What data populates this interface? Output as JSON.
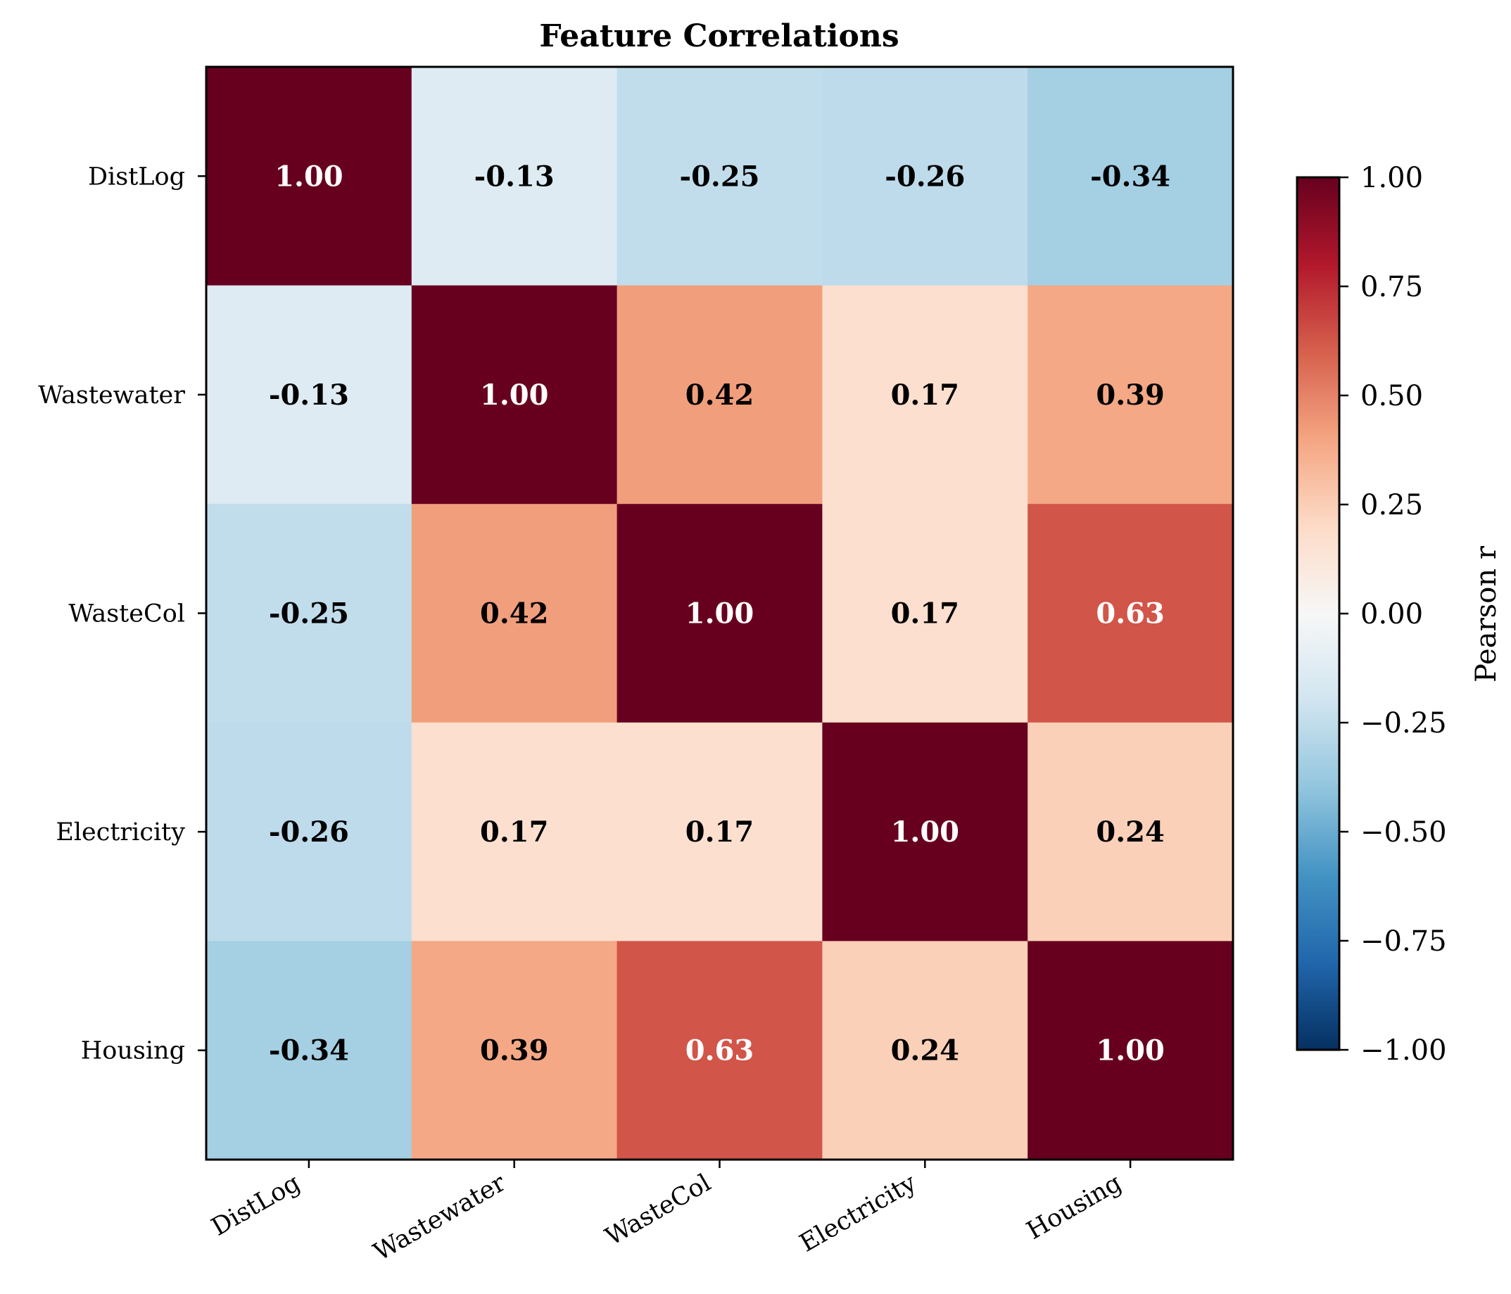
{
  "chart_data": {
    "type": "heatmap",
    "title": "Feature Correlations",
    "row_labels": [
      "DistLog",
      "Wastewater",
      "WasteCol",
      "Electricity",
      "Housing"
    ],
    "col_labels": [
      "DistLog",
      "Wastewater",
      "WasteCol",
      "Electricity",
      "Housing"
    ],
    "values": [
      [
        1.0,
        -0.13,
        -0.25,
        -0.26,
        -0.34
      ],
      [
        -0.13,
        1.0,
        0.42,
        0.17,
        0.39
      ],
      [
        -0.25,
        0.42,
        1.0,
        0.17,
        0.63
      ],
      [
        -0.26,
        0.17,
        0.17,
        1.0,
        0.24
      ],
      [
        -0.34,
        0.39,
        0.63,
        0.24,
        1.0
      ]
    ],
    "colormap": "RdBu_r",
    "vmin": -1.0,
    "vmax": 1.0,
    "colorbar": {
      "label": "Pearson r",
      "ticks": [
        1.0,
        0.75,
        0.5,
        0.25,
        0.0,
        -0.25,
        -0.5,
        -0.75,
        -1.0
      ],
      "tick_labels": [
        "1.00",
        "0.75",
        "0.50",
        "0.25",
        "0.00",
        "−0.25",
        "−0.50",
        "−0.75",
        "−1.00"
      ]
    }
  }
}
